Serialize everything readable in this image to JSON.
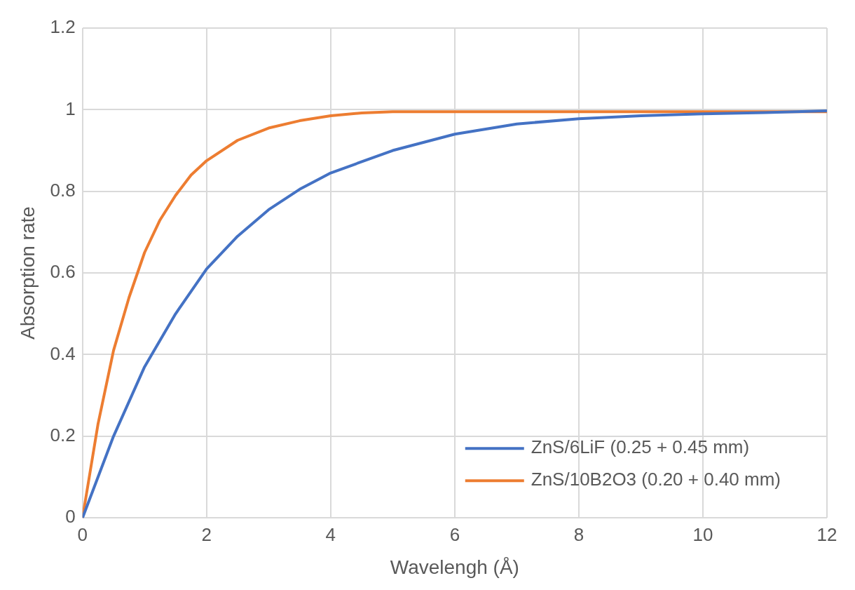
{
  "chart_data": {
    "type": "line",
    "xlabel": "Wavelengh (Å)",
    "ylabel": "Absorption rate",
    "xlim": [
      0,
      12
    ],
    "xticks": [
      0,
      2,
      4,
      6,
      8,
      10,
      12
    ],
    "ylim": [
      0,
      1.2
    ],
    "yticks": [
      0,
      0.2,
      0.4,
      0.6,
      0.8,
      1,
      1.2
    ],
    "grid": true,
    "legend": "bottom right",
    "marker": "none",
    "line_style": "solid",
    "series": [
      {
        "name": "ZnS/6LiF (0.25 + 0.45 mm)",
        "color": "#4472c4",
        "x": [
          0,
          0.5,
          1,
          1.5,
          2,
          2.5,
          3,
          3.5,
          4,
          5,
          6,
          7,
          8,
          9,
          10,
          11,
          12
        ],
        "values": [
          0,
          0.2,
          0.37,
          0.5,
          0.61,
          0.69,
          0.755,
          0.805,
          0.845,
          0.9,
          0.94,
          0.965,
          0.978,
          0.985,
          0.99,
          0.993,
          0.997
        ]
      },
      {
        "name": "ZnS/10B2O3 (0.20 + 0.40 mm)",
        "color": "#ed7d31",
        "x": [
          0,
          0.25,
          0.5,
          0.75,
          1,
          1.25,
          1.5,
          1.75,
          2,
          2.5,
          3,
          3.5,
          4,
          4.5,
          5,
          6,
          8,
          10,
          12
        ],
        "values": [
          0,
          0.23,
          0.41,
          0.54,
          0.65,
          0.73,
          0.79,
          0.84,
          0.875,
          0.925,
          0.955,
          0.973,
          0.985,
          0.992,
          0.995,
          0.995,
          0.995,
          0.995,
          0.995
        ]
      }
    ]
  }
}
